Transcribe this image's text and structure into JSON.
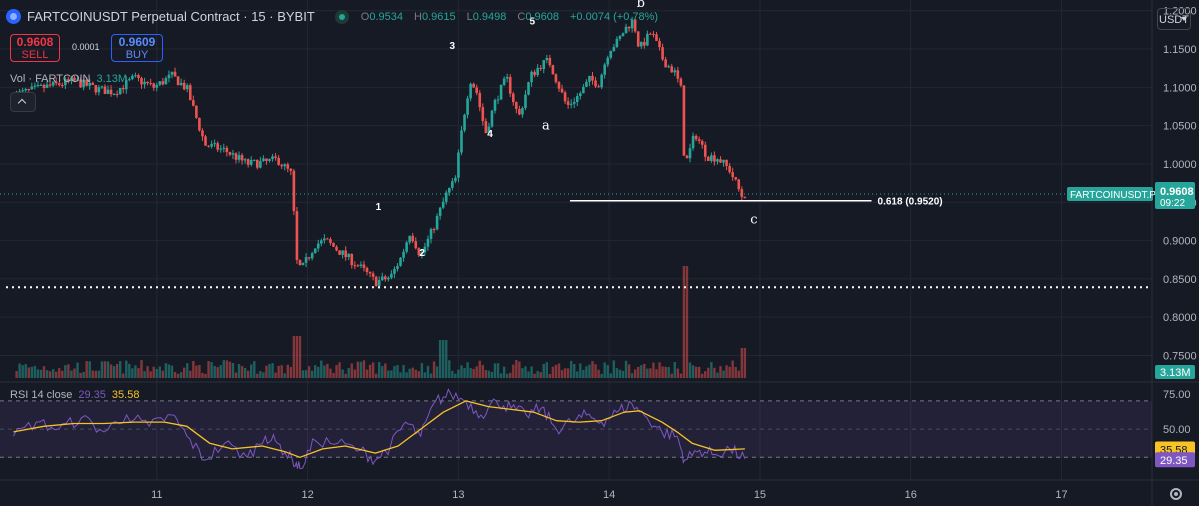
{
  "header": {
    "title": "FARTCOINUSDT Perpetual Contract · 15 · BYBIT",
    "ohlc": {
      "o": "0.9534",
      "h": "0.9615",
      "l": "0.9498",
      "c": "0.9608",
      "change": "+0.0074 (+0.78%)"
    }
  },
  "trade": {
    "sell_price": "0.9608",
    "sell_label": "SELL",
    "spread": "0.0001",
    "buy_price": "0.9609",
    "buy_label": "BUY"
  },
  "volume_legend": {
    "label": "Vol · FARTCOIN",
    "value": "3.13M"
  },
  "rsi_legend": {
    "label": "RSI 14 close",
    "rsi": "29.35",
    "ma": "35.58"
  },
  "currency_button": "USDT",
  "colors": {
    "background": "#161a25",
    "up": "#26a69a",
    "down": "#ef5350",
    "rsi_line": "#7e57c2",
    "rsi_ma": "#f7c325",
    "grid": "#232734"
  },
  "chart_data": {
    "type": "candlestick",
    "interval": "15m",
    "price_axis": {
      "ticks": [
        "1.2000",
        "1.1500",
        "1.1000",
        "1.0500",
        "1.0000",
        "0.9500",
        "0.9000",
        "0.8500",
        "0.8000",
        "0.7500"
      ],
      "range": [
        0.718,
        1.214
      ]
    },
    "time_axis": {
      "ticks": [
        "11",
        "12",
        "13",
        "14",
        "15",
        "16",
        "17"
      ]
    },
    "last_price_label": {
      "symbol": "FARTCOINUSDT.P",
      "price": "0.9608",
      "countdown": "09:22"
    },
    "volume_axis_label": "3.13M",
    "close_path": [
      [
        10.05,
        1.09
      ],
      [
        10.25,
        1.1
      ],
      [
        10.45,
        1.108
      ],
      [
        10.62,
        1.097
      ],
      [
        10.72,
        1.094
      ],
      [
        10.85,
        1.112
      ],
      [
        10.98,
        1.1
      ],
      [
        11.1,
        1.115
      ],
      [
        11.2,
        1.098
      ],
      [
        11.32,
        1.025
      ],
      [
        11.45,
        1.018
      ],
      [
        11.6,
        1.0
      ],
      [
        11.72,
        1.002
      ],
      [
        11.8,
        1.006
      ],
      [
        11.9,
        0.985
      ],
      [
        11.92,
        0.875
      ],
      [
        11.96,
        0.862
      ],
      [
        12.05,
        0.895
      ],
      [
        12.12,
        0.9
      ],
      [
        12.25,
        0.88
      ],
      [
        12.35,
        0.865
      ],
      [
        12.45,
        0.846
      ],
      [
        12.55,
        0.852
      ],
      [
        12.62,
        0.878
      ],
      [
        12.68,
        0.912
      ],
      [
        12.75,
        0.88
      ],
      [
        12.82,
        0.91
      ],
      [
        12.92,
        0.96
      ],
      [
        12.98,
        0.98
      ],
      [
        13.02,
        1.04
      ],
      [
        13.05,
        1.08
      ],
      [
        13.08,
        1.11
      ],
      [
        13.12,
        1.095
      ],
      [
        13.18,
        1.04
      ],
      [
        13.25,
        1.085
      ],
      [
        13.32,
        1.112
      ],
      [
        13.4,
        1.06
      ],
      [
        13.48,
        1.115
      ],
      [
        13.55,
        1.13
      ],
      [
        13.6,
        1.135
      ],
      [
        13.66,
        1.105
      ],
      [
        13.72,
        1.075
      ],
      [
        13.8,
        1.09
      ],
      [
        13.87,
        1.11
      ],
      [
        13.93,
        1.105
      ],
      [
        14.0,
        1.15
      ],
      [
        14.06,
        1.16
      ],
      [
        14.1,
        1.175
      ],
      [
        14.16,
        1.188
      ],
      [
        14.2,
        1.15
      ],
      [
        14.28,
        1.172
      ],
      [
        14.36,
        1.135
      ],
      [
        14.44,
        1.118
      ],
      [
        14.48,
        1.095
      ],
      [
        14.5,
        0.995
      ],
      [
        14.57,
        1.04
      ],
      [
        14.65,
        1.01
      ],
      [
        14.72,
        1.008
      ],
      [
        14.8,
        0.992
      ],
      [
        14.88,
        0.958
      ],
      [
        14.9,
        0.961
      ]
    ],
    "annotations": [
      {
        "text": "1",
        "x": 12.47,
        "y": 0.94
      },
      {
        "text": "2",
        "x": 12.76,
        "y": 0.88
      },
      {
        "text": "3",
        "x": 12.96,
        "y": 1.15
      },
      {
        "text": "4",
        "x": 13.21,
        "y": 1.035
      },
      {
        "text": "5",
        "x": 13.49,
        "y": 1.182
      },
      {
        "text": "a",
        "x": 13.58,
        "y": 1.045
      },
      {
        "text": "b",
        "x": 14.21,
        "y": 1.205
      },
      {
        "text": "c",
        "x": 14.96,
        "y": 0.922
      }
    ],
    "fib_level": {
      "label": "0.618 (0.9520)",
      "price": 0.952,
      "x_start": 13.74,
      "x_end": 15.74
    },
    "dotted_level": {
      "price": 0.839
    },
    "rsi": {
      "axis_ticks": [
        "75.00",
        "50.00"
      ],
      "bands": [
        70,
        30
      ],
      "range": [
        21,
        82
      ],
      "value_label": "29.35",
      "ma_label": "35.58",
      "path": [
        [
          10.05,
          45
        ],
        [
          10.2,
          55
        ],
        [
          10.35,
          50
        ],
        [
          10.5,
          58
        ],
        [
          10.65,
          48
        ],
        [
          10.8,
          60
        ],
        [
          10.95,
          52
        ],
        [
          11.1,
          60
        ],
        [
          11.2,
          45
        ],
        [
          11.32,
          28
        ],
        [
          11.45,
          40
        ],
        [
          11.6,
          30
        ],
        [
          11.72,
          45
        ],
        [
          11.8,
          40
        ],
        [
          11.9,
          28
        ],
        [
          11.95,
          22
        ],
        [
          12.05,
          42
        ],
        [
          12.2,
          40
        ],
        [
          12.35,
          35
        ],
        [
          12.45,
          28
        ],
        [
          12.55,
          38
        ],
        [
          12.65,
          55
        ],
        [
          12.75,
          45
        ],
        [
          12.85,
          70
        ],
        [
          12.95,
          75
        ],
        [
          13.05,
          70
        ],
        [
          13.15,
          60
        ],
        [
          13.25,
          70
        ],
        [
          13.35,
          65
        ],
        [
          13.45,
          60
        ],
        [
          13.55,
          65
        ],
        [
          13.65,
          50
        ],
        [
          13.75,
          55
        ],
        [
          13.85,
          60
        ],
        [
          13.95,
          55
        ],
        [
          14.05,
          62
        ],
        [
          14.15,
          68
        ],
        [
          14.25,
          58
        ],
        [
          14.35,
          48
        ],
        [
          14.45,
          45
        ],
        [
          14.5,
          28
        ],
        [
          14.6,
          35
        ],
        [
          14.7,
          32
        ],
        [
          14.8,
          36
        ],
        [
          14.9,
          29
        ]
      ],
      "ma_path": [
        [
          10.05,
          48
        ],
        [
          10.25,
          52
        ],
        [
          10.45,
          54
        ],
        [
          10.65,
          54
        ],
        [
          10.85,
          55
        ],
        [
          11.05,
          55
        ],
        [
          11.2,
          52
        ],
        [
          11.35,
          40
        ],
        [
          11.5,
          36
        ],
        [
          11.7,
          38
        ],
        [
          11.85,
          34
        ],
        [
          11.95,
          30
        ],
        [
          12.1,
          36
        ],
        [
          12.25,
          38
        ],
        [
          12.45,
          33
        ],
        [
          12.6,
          38
        ],
        [
          12.75,
          50
        ],
        [
          12.9,
          62
        ],
        [
          13.05,
          70
        ],
        [
          13.2,
          66
        ],
        [
          13.35,
          64
        ],
        [
          13.5,
          62
        ],
        [
          13.65,
          56
        ],
        [
          13.8,
          55
        ],
        [
          13.95,
          56
        ],
        [
          14.1,
          62
        ],
        [
          14.2,
          63
        ],
        [
          14.35,
          55
        ],
        [
          14.45,
          48
        ],
        [
          14.55,
          40
        ],
        [
          14.7,
          35
        ],
        [
          14.9,
          36
        ]
      ]
    }
  }
}
